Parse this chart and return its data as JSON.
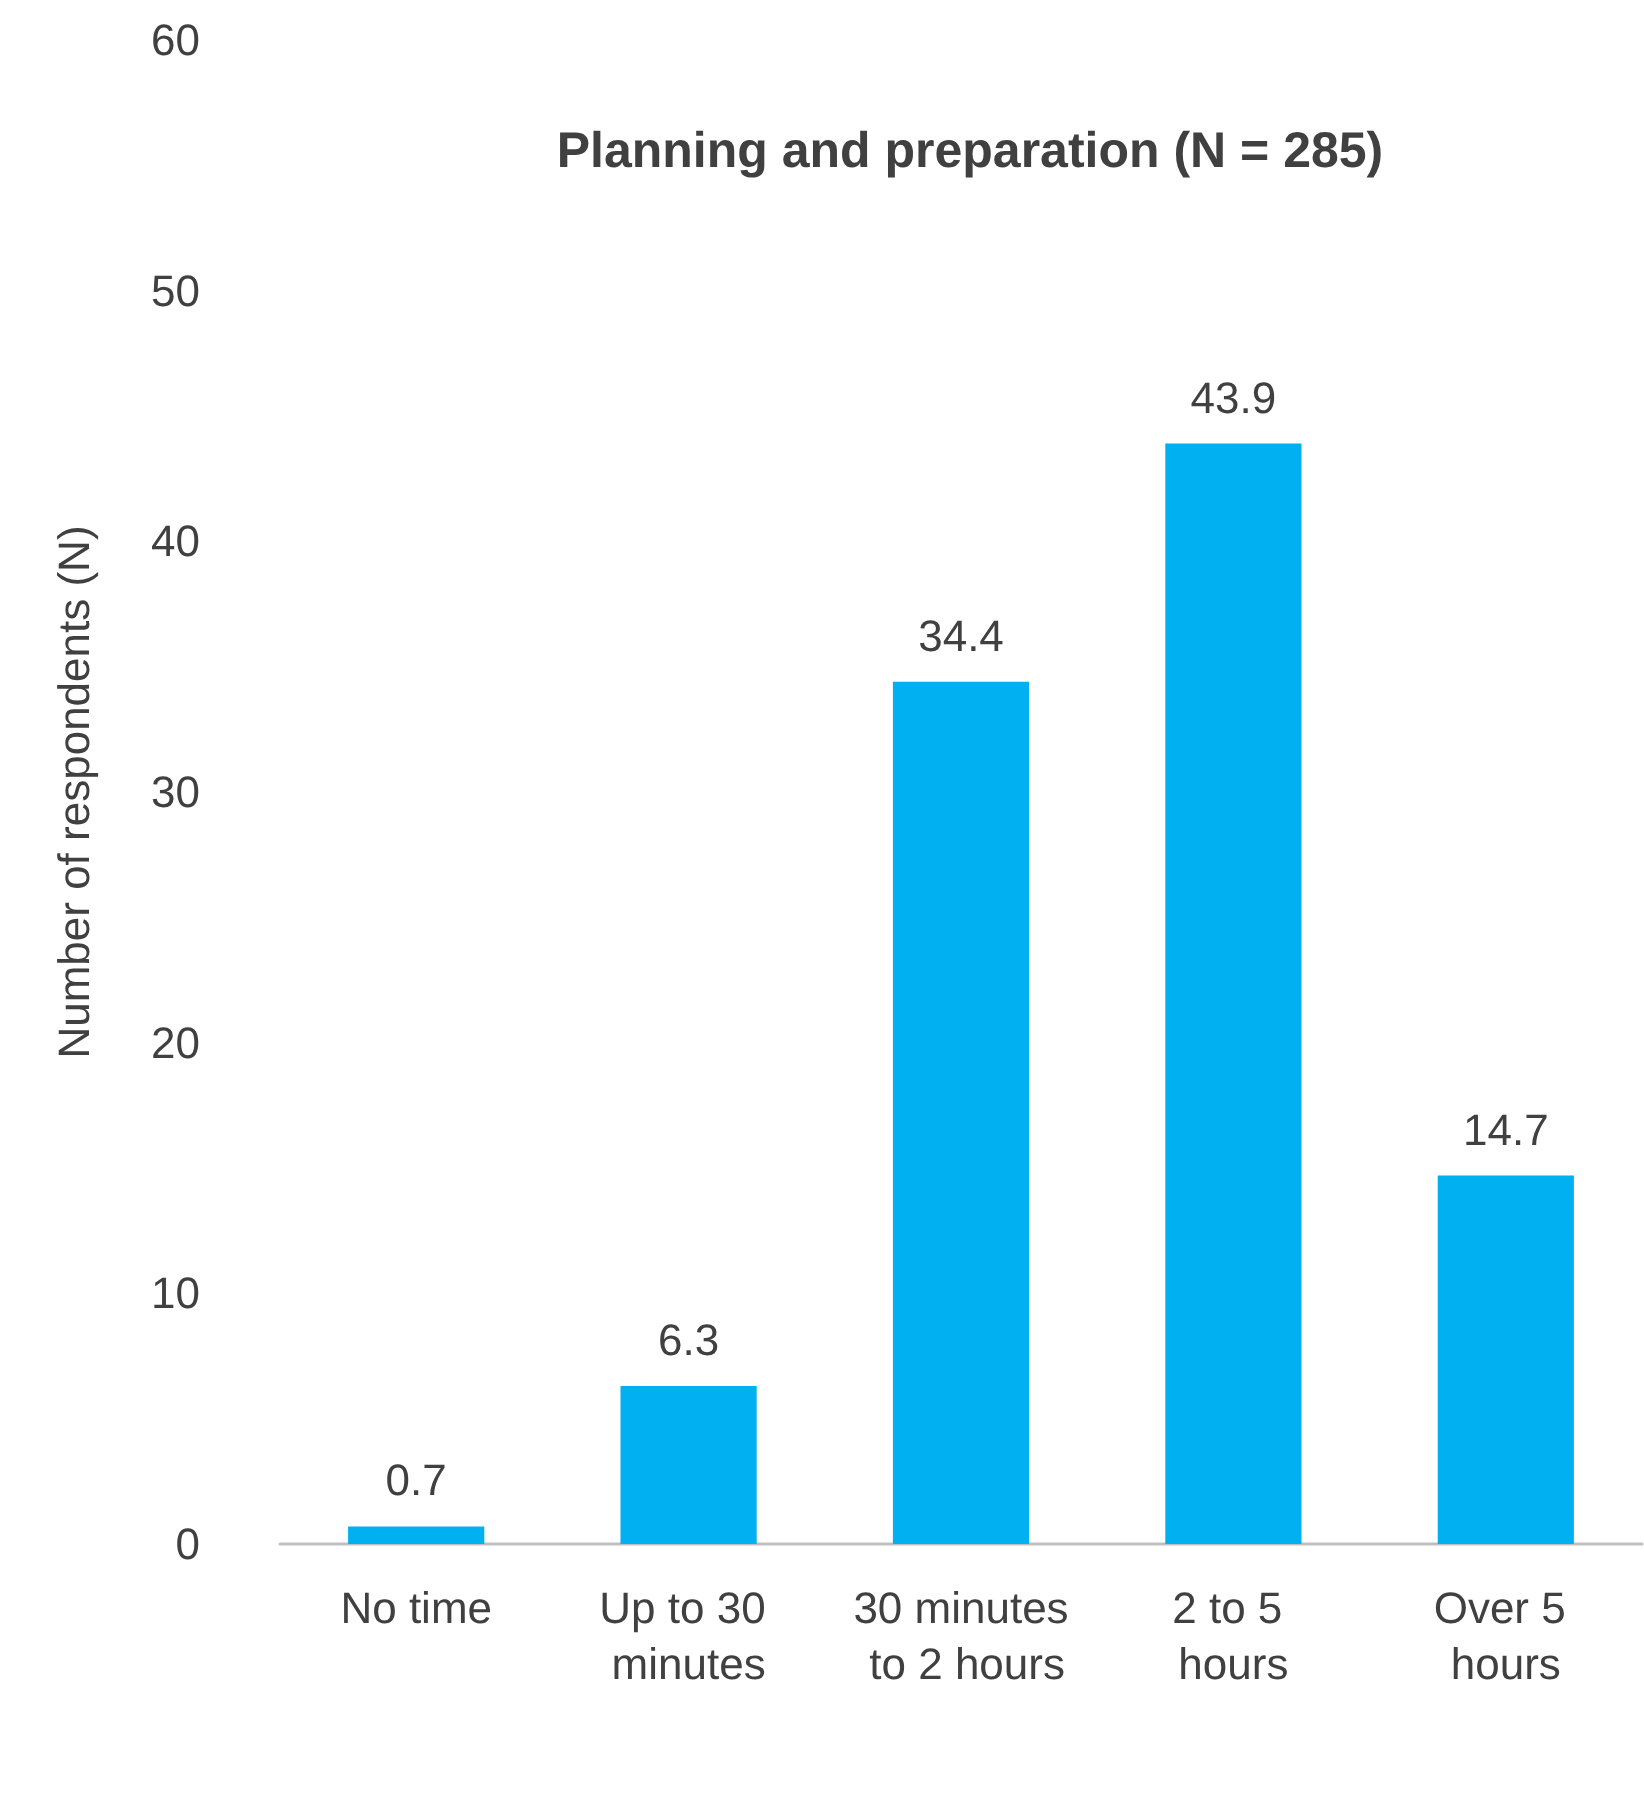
{
  "chart_data": {
    "type": "bar",
    "title": "Planning and preparation (N = 285)",
    "ylabel": "Number of respondents (N)",
    "categories": [
      "No time",
      "Up to 30 minutes",
      "30 minutes to 2 hours",
      "2 to 5 hours",
      "Over 5 hours"
    ],
    "values": [
      0.7,
      6.3,
      34.4,
      43.9,
      14.7
    ],
    "color": "#00b0f0",
    "ylim": [
      0,
      60
    ],
    "yticks": [
      0,
      10,
      20,
      30,
      40,
      50,
      60
    ],
    "grid": false,
    "data_labels": true
  }
}
